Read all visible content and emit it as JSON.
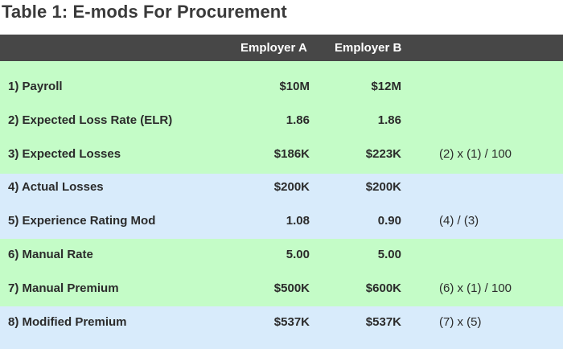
{
  "title": "Table 1: E-mods For Procurement",
  "columns": {
    "employer_a": "Employer A",
    "employer_b": "Employer B"
  },
  "colors": {
    "header_bg": "#474747",
    "green_band": "#c4fcc7",
    "blue_band": "#d8ebfb"
  },
  "rows": [
    {
      "label": "1) Payroll",
      "employer_a": "$10M",
      "employer_b": "$12M",
      "formula": ""
    },
    {
      "label": "2) Expected Loss Rate (ELR)",
      "employer_a": "1.86",
      "employer_b": "1.86",
      "formula": ""
    },
    {
      "label": "3) Expected Losses",
      "employer_a": "$186K",
      "employer_b": "$223K",
      "formula": "(2) x (1) / 100"
    },
    {
      "label": "4) Actual Losses",
      "employer_a": "$200K",
      "employer_b": "$200K",
      "formula": ""
    },
    {
      "label": "5) Experience Rating Mod",
      "employer_a": "1.08",
      "employer_b": "0.90",
      "formula": "(4) / (3)"
    },
    {
      "label": "6) Manual Rate",
      "employer_a": "5.00",
      "employer_b": "5.00",
      "formula": ""
    },
    {
      "label": "7) Manual Premium",
      "employer_a": "$500K",
      "employer_b": "$600K",
      "formula": "(6) x (1) / 100"
    },
    {
      "label": "8) Modified Premium",
      "employer_a": "$537K",
      "employer_b": "$537K",
      "formula": "(7) x (5)"
    }
  ]
}
